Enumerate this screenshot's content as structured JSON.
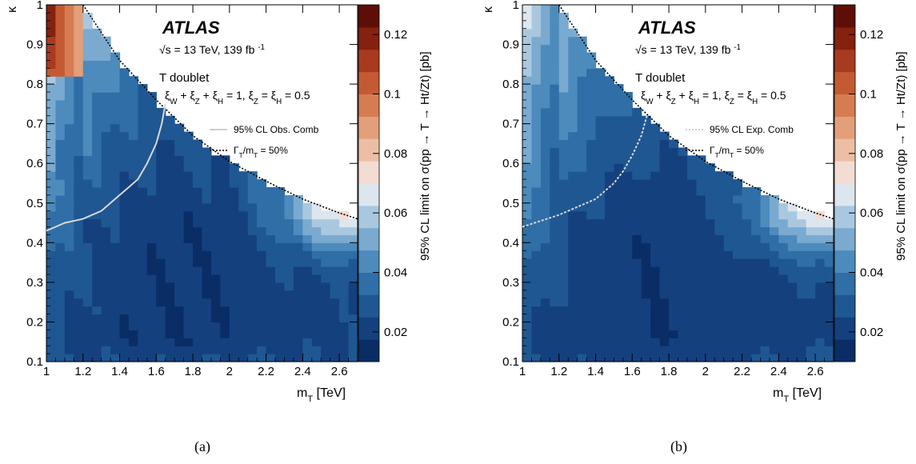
{
  "chart_data": [
    {
      "type": "heatmap",
      "panel_label": "(a)",
      "xlabel": "m_T [TeV]",
      "ylabel": "κ",
      "xlim": [
        1.0,
        2.7
      ],
      "ylim": [
        0.1,
        1.0
      ],
      "x_ticks": [
        "1",
        "1.2",
        "1.4",
        "1.6",
        "1.8",
        "2",
        "2.2",
        "2.4",
        "2.6"
      ],
      "y_ticks": [
        "0.1",
        "0.2",
        "0.3",
        "0.4",
        "0.5",
        "0.6",
        "0.7",
        "0.8",
        "0.9",
        "1"
      ],
      "colorbar_label": "95% CL limit on σ(pp → T → Ht/Zt) [pb]",
      "colorbar_range": [
        0.01,
        0.13
      ],
      "colorbar_ticks": [
        "0.02",
        "0.04",
        "0.06",
        "0.08",
        "0.1",
        "0.12"
      ],
      "atlas_label": "ATLAS",
      "energy_text": "√s = 13 TeV, 139 fb -1",
      "model_text": "T doublet",
      "xi_text": "ξW + ξZ + ξH = 1, ξZ = ξH = 0.5",
      "legend": [
        {
          "label": "95% CL Obs. Comb",
          "style": "solid-light"
        },
        {
          "label": "ΓT/mT = 50%",
          "style": "dotted-black"
        }
      ],
      "contour_x": [
        1.0,
        1.1,
        1.2,
        1.3,
        1.35,
        1.4,
        1.45,
        1.5,
        1.55,
        1.6,
        1.63,
        1.65
      ],
      "contour_y": [
        0.43,
        0.45,
        0.46,
        0.48,
        0.5,
        0.52,
        0.54,
        0.56,
        0.6,
        0.65,
        0.7,
        0.75
      ],
      "width_boundary_x": [
        1.2,
        1.4,
        1.6,
        1.8,
        2.0,
        2.2,
        2.4,
        2.6,
        2.7
      ],
      "width_boundary_y": [
        1.0,
        0.86,
        0.76,
        0.67,
        0.605,
        0.555,
        0.51,
        0.475,
        0.46
      ]
    },
    {
      "type": "heatmap",
      "panel_label": "(b)",
      "xlabel": "m_T [TeV]",
      "ylabel": "κ",
      "xlim": [
        1.0,
        2.7
      ],
      "ylim": [
        0.1,
        1.0
      ],
      "x_ticks": [
        "1",
        "1.2",
        "1.4",
        "1.6",
        "1.8",
        "2",
        "2.2",
        "2.4",
        "2.6"
      ],
      "y_ticks": [
        "0.1",
        "0.2",
        "0.3",
        "0.4",
        "0.5",
        "0.6",
        "0.7",
        "0.8",
        "0.9",
        "1"
      ],
      "colorbar_label": "95% CL limit on σ(pp → T → Ht/Zt) [pb]",
      "colorbar_range": [
        0.01,
        0.13
      ],
      "colorbar_ticks": [
        "0.02",
        "0.04",
        "0.06",
        "0.08",
        "0.1",
        "0.12"
      ],
      "atlas_label": "ATLAS",
      "energy_text": "√s = 13 TeV, 139 fb -1",
      "model_text": "T doublet",
      "xi_text": "ξW + ξZ + ξH = 1, ξZ = ξH = 0.5",
      "legend": [
        {
          "label": "95% CL Exp. Comb",
          "style": "dotted-light"
        },
        {
          "label": "ΓT/mT = 50%",
          "style": "dotted-black"
        }
      ],
      "contour_x": [
        1.0,
        1.1,
        1.2,
        1.3,
        1.4,
        1.45,
        1.5,
        1.55,
        1.6,
        1.65,
        1.68
      ],
      "contour_y": [
        0.44,
        0.455,
        0.47,
        0.49,
        0.51,
        0.53,
        0.55,
        0.58,
        0.62,
        0.67,
        0.72
      ],
      "width_boundary_x": [
        1.2,
        1.4,
        1.6,
        1.8,
        2.0,
        2.2,
        2.4,
        2.6,
        2.7
      ],
      "width_boundary_y": [
        1.0,
        0.86,
        0.76,
        0.67,
        0.605,
        0.555,
        0.51,
        0.475,
        0.46
      ]
    }
  ],
  "colors": {
    "palette": [
      "#0b2d66",
      "#14407e",
      "#1f5793",
      "#2f6ea6",
      "#4d8bbd",
      "#7aaad0",
      "#a9c8e0",
      "#dde6ee",
      "#f3ddd2",
      "#ecbfa5",
      "#e39f7a",
      "#d67c52",
      "#c45a33",
      "#a83b1f",
      "#86210f",
      "#5e0e06"
    ],
    "contour_light": "#d8d8d8",
    "boundary": "#000000"
  }
}
